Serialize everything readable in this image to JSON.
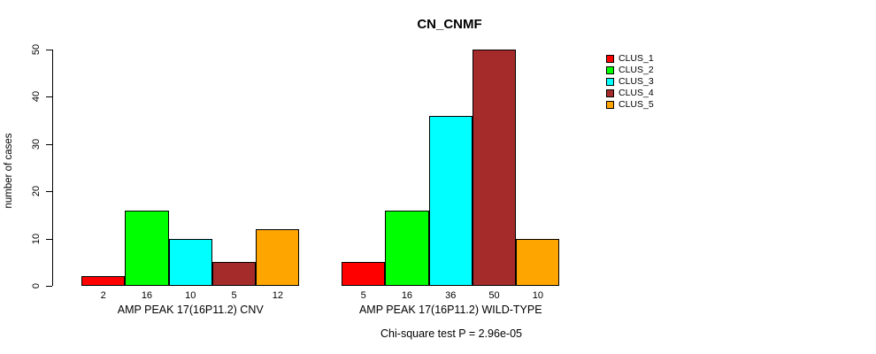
{
  "title": "CN_CNMF",
  "ylabel": "number of cases",
  "footer": "Chi-square test P = 2.96e-05",
  "legend": {
    "position": "right",
    "items": [
      {
        "label": "CLUS_1",
        "color": "#FF0000"
      },
      {
        "label": "CLUS_2",
        "color": "#00FF00"
      },
      {
        "label": "CLUS_3",
        "color": "#00FFFF"
      },
      {
        "label": "CLUS_4",
        "color": "#A52A2A"
      },
      {
        "label": "CLUS_5",
        "color": "#FFA500"
      }
    ]
  },
  "chart_data": {
    "type": "bar",
    "title": "CN_CNMF",
    "xlabel": "",
    "ylabel": "number of cases",
    "ylim": [
      0,
      50
    ],
    "yticks": [
      0,
      10,
      20,
      30,
      40,
      50
    ],
    "grid": false,
    "legend_position": "right",
    "series": [
      "CLUS_1",
      "CLUS_2",
      "CLUS_3",
      "CLUS_4",
      "CLUS_5"
    ],
    "colors": [
      "#FF0000",
      "#00FF00",
      "#00FFFF",
      "#A52A2A",
      "#FFA500"
    ],
    "groups": [
      {
        "label": "AMP PEAK 17(16P11.2) CNV",
        "values": [
          2,
          16,
          10,
          5,
          12
        ]
      },
      {
        "label": "AMP PEAK 17(16P11.2) WILD-TYPE",
        "values": [
          5,
          16,
          36,
          50,
          10
        ]
      }
    ],
    "bar_value_labels": true,
    "annotation": "Chi-square test P = 2.96e-05"
  }
}
